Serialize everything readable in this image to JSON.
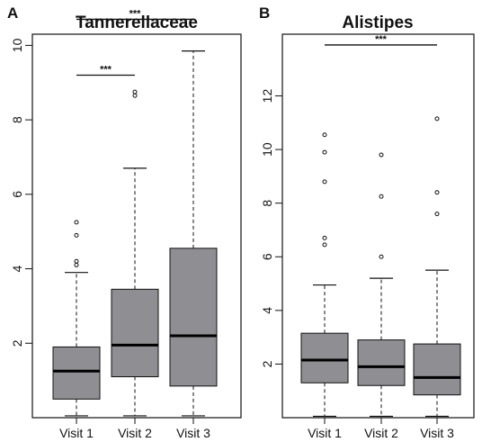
{
  "colors": {
    "box_fill": "#8e8e93",
    "line": "#111111",
    "median": "#000000",
    "background": "#ffffff"
  },
  "chart_data": [
    {
      "type": "box",
      "panel_label": "A",
      "title": "Tannerellaceae",
      "categories": [
        "Visit 1",
        "Visit 2",
        "Visit 3"
      ],
      "ylim": [
        0,
        10.3
      ],
      "yticks": [
        2,
        4,
        6,
        8,
        10
      ],
      "ytick_labels": [
        "2",
        "4",
        "6",
        "8",
        "10"
      ],
      "boxes": [
        {
          "category": "Visit 1",
          "whisker_low": 0.05,
          "q1": 0.5,
          "median": 1.25,
          "q3": 1.9,
          "whisker_high": 3.9,
          "outliers": [
            4.1,
            4.2,
            4.9,
            5.25
          ]
        },
        {
          "category": "Visit 2",
          "whisker_low": 0.05,
          "q1": 1.1,
          "median": 1.95,
          "q3": 3.45,
          "whisker_high": 6.7,
          "outliers": [
            8.65,
            8.75
          ]
        },
        {
          "category": "Visit 3",
          "whisker_low": 0.05,
          "q1": 0.85,
          "median": 2.2,
          "q3": 4.55,
          "whisker_high": 9.85,
          "outliers": []
        }
      ],
      "significance": [
        {
          "from": "Visit 1",
          "to": "Visit 2",
          "y": 9.2,
          "label": "***"
        },
        {
          "from": "Visit 1",
          "to": "Visit 3",
          "y": 10.7,
          "label": "***"
        }
      ]
    },
    {
      "type": "box",
      "panel_label": "B",
      "title": "Alistipes",
      "categories": [
        "Visit 1",
        "Visit 2",
        "Visit 3"
      ],
      "ylim": [
        0,
        14.3
      ],
      "yticks": [
        2,
        4,
        6,
        8,
        10,
        12
      ],
      "ytick_labels": [
        "2",
        "4",
        "6",
        "8",
        "10",
        "12"
      ],
      "boxes": [
        {
          "category": "Visit 1",
          "whisker_low": 0.05,
          "q1": 1.3,
          "median": 2.15,
          "q3": 3.15,
          "whisker_high": 4.95,
          "outliers": [
            6.45,
            6.7,
            8.8,
            9.9,
            10.55
          ]
        },
        {
          "category": "Visit 2",
          "whisker_low": 0.05,
          "q1": 1.2,
          "median": 1.9,
          "q3": 2.9,
          "whisker_high": 5.2,
          "outliers": [
            6.0,
            8.25,
            9.8
          ]
        },
        {
          "category": "Visit 3",
          "whisker_low": 0.05,
          "q1": 0.85,
          "median": 1.5,
          "q3": 2.75,
          "whisker_high": 5.5,
          "outliers": [
            7.6,
            8.4,
            11.15
          ]
        }
      ],
      "significance": [
        {
          "from": "Visit 1",
          "to": "Visit 3",
          "y": 13.9,
          "label": "***"
        }
      ]
    }
  ]
}
